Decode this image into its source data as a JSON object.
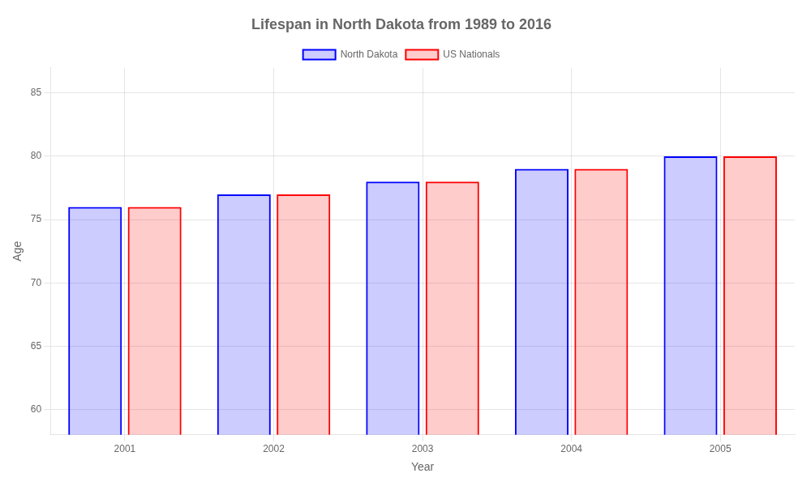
{
  "chart_data": {
    "type": "bar",
    "title": "Lifespan in North Dakota from 1989 to 2016",
    "xlabel": "Year",
    "ylabel": "Age",
    "categories": [
      "2001",
      "2002",
      "2003",
      "2004",
      "2005"
    ],
    "series": [
      {
        "name": "North Dakota",
        "color": "#0000ff",
        "values": [
          76.0,
          77.0,
          78.0,
          79.0,
          80.0
        ]
      },
      {
        "name": "US Nationals",
        "color": "#ff0000",
        "values": [
          76.0,
          77.0,
          78.0,
          79.0,
          80.0
        ]
      }
    ],
    "ylim": [
      58,
      87
    ],
    "yticks": [
      60,
      65,
      70,
      75,
      80,
      85
    ],
    "grid": true,
    "legend": "top"
  }
}
